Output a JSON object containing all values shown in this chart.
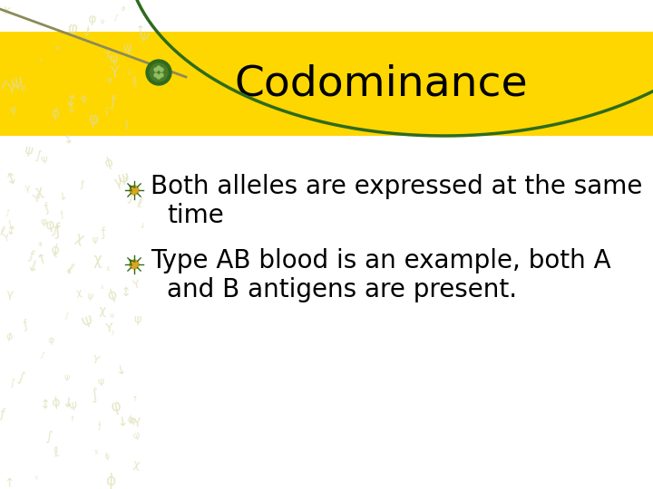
{
  "title": "Codominance",
  "title_fontsize": 34,
  "title_color": "#000000",
  "title_bg_color": "#FFD700",
  "bullet1_line1": "Both alleles are expressed at the same",
  "bullet1_line2": "time",
  "bullet2_line1": "Type AB blood is an example, both A",
  "bullet2_line2": "and B antigens are present.",
  "bullet_color": "#DAA520",
  "text_color": "#000000",
  "bullet_fontsize": 20,
  "bg_color": "#FFFFFF",
  "decoration_color_green": "#2E6B1E",
  "watermark_color": "#DCDCB0",
  "arc_color": "#2E6B1E",
  "stem_color": "#8B8B5A"
}
